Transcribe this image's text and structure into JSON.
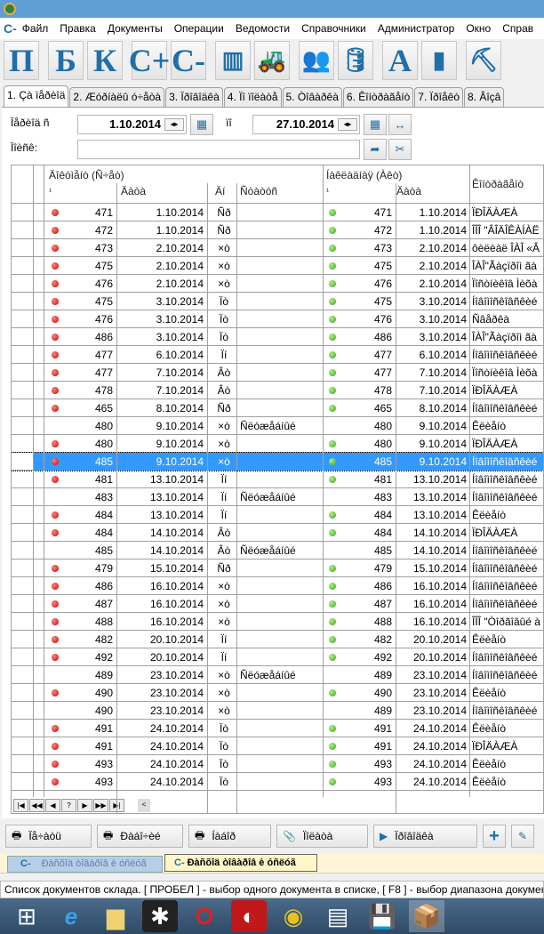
{
  "menu": {
    "logo": "C-",
    "items": [
      "Файл",
      "Правка",
      "Документы",
      "Операции",
      "Ведомости",
      "Справочники",
      "Администратор",
      "Окно",
      "Справ"
    ]
  },
  "toolbar": {
    "buttons": [
      {
        "label": "П"
      },
      {
        "label": "Б"
      },
      {
        "label": "К"
      },
      {
        "label": "C+"
      },
      {
        "label": "C-"
      },
      {
        "icon": "barcode-icon"
      },
      {
        "icon": "forklift-icon"
      },
      {
        "icon": "users-icon"
      },
      {
        "icon": "database-icon"
      },
      {
        "label": "A"
      },
      {
        "icon": "bar-chart-icon"
      },
      {
        "icon": "worker-icon"
      }
    ]
  },
  "tabs": [
    "1. Çà ïåðèîä",
    "2. Æóðíàëû ó÷åòà",
    "3. Ïðîâîäêà",
    "4. Ïî ïîëàòå",
    "5. Òîâàðêà",
    "6. Êîíòðàãåíò",
    "7. Ïðîåêò",
    "8. Âîçâ"
  ],
  "filter": {
    "period_label": "Ïåðèîä ñ",
    "date_from": "1.10.2014",
    "to_label": "ïî",
    "date_to": "27.10.2014",
    "search_label": "Ïîèñê:",
    "search_value": ""
  },
  "grid": {
    "group1": "Äîêóìåíò (Ñ÷åò)",
    "group2": "Íàêëàäíàÿ (Àêò)",
    "col_contractor": "Êîíòðàãåíò",
    "col_num": "¹",
    "col_date": "Äàòà",
    "col_day": "Äí",
    "col_status": "Ñòàòóñ",
    "col_num2": "¹",
    "col_date2": "Äàòà",
    "selected_index": 14,
    "rows": [
      {
        "r": true,
        "n": "471",
        "d": "1.10.2014",
        "w": "Ñð",
        "s": "",
        "g": true,
        "n2": "471",
        "d2": "1.10.2014",
        "c": "ÏÐÎÄÀÆÀ"
      },
      {
        "r": true,
        "n": "472",
        "d": "1.10.2014",
        "w": "Ñð",
        "s": "",
        "g": true,
        "n2": "472",
        "d2": "1.10.2014",
        "c": "ÎÎÎ \"ÂÎÄÎÊÀÍÀË"
      },
      {
        "r": true,
        "n": "473",
        "d": "2.10.2014",
        "w": "×ò",
        "s": "",
        "g": true,
        "n2": "473",
        "d2": "2.10.2014",
        "c": "ôèëèàë ÎÀÎ «Â"
      },
      {
        "r": true,
        "n": "475",
        "d": "2.10.2014",
        "w": "×ò",
        "s": "",
        "g": true,
        "n2": "475",
        "d2": "2.10.2014",
        "c": "ÎÀÎ\"Ãàçïðîì ãà"
      },
      {
        "r": true,
        "n": "476",
        "d": "2.10.2014",
        "w": "×ò",
        "s": "",
        "g": true,
        "n2": "476",
        "d2": "2.10.2014",
        "c": "Ïîñòíèêîâ Ìèõà"
      },
      {
        "r": true,
        "n": "475",
        "d": "3.10.2014",
        "w": "Ïò",
        "s": "",
        "g": true,
        "n2": "475",
        "d2": "3.10.2014",
        "c": "Íîâîìîñêîâñêèé"
      },
      {
        "r": true,
        "n": "476",
        "d": "3.10.2014",
        "w": "Ïò",
        "s": "",
        "g": true,
        "n2": "476",
        "d2": "3.10.2014",
        "c": "Ñâåðêà"
      },
      {
        "r": true,
        "n": "486",
        "d": "3.10.2014",
        "w": "Ïò",
        "s": "",
        "g": true,
        "n2": "486",
        "d2": "3.10.2014",
        "c": "ÎÀÎ\"Ãàçïðîì ãà"
      },
      {
        "r": true,
        "n": "477",
        "d": "6.10.2014",
        "w": "Ïí",
        "s": "",
        "g": true,
        "n2": "477",
        "d2": "6.10.2014",
        "c": "Íîâîìîñêîâñêèé"
      },
      {
        "r": true,
        "n": "477",
        "d": "7.10.2014",
        "w": "Âò",
        "s": "",
        "g": true,
        "n2": "477",
        "d2": "7.10.2014",
        "c": "Ïîñòíèêîâ Ìèõà"
      },
      {
        "r": true,
        "n": "478",
        "d": "7.10.2014",
        "w": "Âò",
        "s": "",
        "g": true,
        "n2": "478",
        "d2": "7.10.2014",
        "c": "ÏÐÎÄÀÆÀ"
      },
      {
        "r": true,
        "n": "465",
        "d": "8.10.2014",
        "w": "Ñð",
        "s": "",
        "g": true,
        "n2": "465",
        "d2": "8.10.2014",
        "c": "Íîâîìîñêîâñêèé"
      },
      {
        "r": false,
        "n": "480",
        "d": "9.10.2014",
        "w": "×ò",
        "s": "Ñëóæåáíûé",
        "g": false,
        "n2": "480",
        "d2": "9.10.2014",
        "c": "Êëèåíò"
      },
      {
        "r": true,
        "n": "480",
        "d": "9.10.2014",
        "w": "×ò",
        "s": "",
        "g": true,
        "n2": "480",
        "d2": "9.10.2014",
        "c": "ÏÐÎÄÀÆÀ"
      },
      {
        "r": true,
        "n": "485",
        "d": "9.10.2014",
        "w": "×ò",
        "s": "",
        "g": true,
        "n2": "485",
        "d2": "9.10.2014",
        "c": "Íîâîìîñêîâñêèé"
      },
      {
        "r": true,
        "n": "481",
        "d": "13.10.2014",
        "w": "Ïí",
        "s": "",
        "g": true,
        "n2": "481",
        "d2": "13.10.2014",
        "c": "Íîâîìîñêîâñêèé"
      },
      {
        "r": false,
        "n": "483",
        "d": "13.10.2014",
        "w": "Ïí",
        "s": "Ñëóæåáíûé",
        "g": false,
        "n2": "483",
        "d2": "13.10.2014",
        "c": "Íîâîìîñêîâñêèé"
      },
      {
        "r": true,
        "n": "484",
        "d": "13.10.2014",
        "w": "Ïí",
        "s": "",
        "g": true,
        "n2": "484",
        "d2": "13.10.2014",
        "c": "Êëèåíò"
      },
      {
        "r": true,
        "n": "484",
        "d": "14.10.2014",
        "w": "Âò",
        "s": "",
        "g": true,
        "n2": "484",
        "d2": "14.10.2014",
        "c": "ÏÐÎÄÀÆÀ"
      },
      {
        "r": false,
        "n": "485",
        "d": "14.10.2014",
        "w": "Âò",
        "s": "Ñëóæåáíûé",
        "g": false,
        "n2": "485",
        "d2": "14.10.2014",
        "c": "Íîâîìîñêîâñêèé"
      },
      {
        "r": true,
        "n": "479",
        "d": "15.10.2014",
        "w": "Ñð",
        "s": "",
        "g": true,
        "n2": "479",
        "d2": "15.10.2014",
        "c": "Íîâîìîñêîâñêèé"
      },
      {
        "r": true,
        "n": "486",
        "d": "16.10.2014",
        "w": "×ò",
        "s": "",
        "g": true,
        "n2": "486",
        "d2": "16.10.2014",
        "c": "Íîâîìîñêîâñêèé"
      },
      {
        "r": true,
        "n": "487",
        "d": "16.10.2014",
        "w": "×ò",
        "s": "",
        "g": true,
        "n2": "487",
        "d2": "16.10.2014",
        "c": "Íîâîìîñêîâñêèé"
      },
      {
        "r": true,
        "n": "488",
        "d": "16.10.2014",
        "w": "×ò",
        "s": "",
        "g": true,
        "n2": "488",
        "d2": "16.10.2014",
        "c": "ÎÎÎ \"Òîðãîâûé à"
      },
      {
        "r": true,
        "n": "482",
        "d": "20.10.2014",
        "w": "Ïí",
        "s": "",
        "g": true,
        "n2": "482",
        "d2": "20.10.2014",
        "c": "Êëèåíò"
      },
      {
        "r": true,
        "n": "492",
        "d": "20.10.2014",
        "w": "Ïí",
        "s": "",
        "g": true,
        "n2": "492",
        "d2": "20.10.2014",
        "c": "Íîâîìîñêîâñêèé"
      },
      {
        "r": false,
        "n": "489",
        "d": "23.10.2014",
        "w": "×ò",
        "s": "Ñëóæåáíûé",
        "g": false,
        "n2": "489",
        "d2": "23.10.2014",
        "c": "Íîâîìîñêîâñêèé"
      },
      {
        "r": true,
        "n": "490",
        "d": "23.10.2014",
        "w": "×ò",
        "s": "",
        "g": true,
        "n2": "490",
        "d2": "23.10.2014",
        "c": "Êëèåíò"
      },
      {
        "r": false,
        "n": "490",
        "d": "23.10.2014",
        "w": "×ò",
        "s": "",
        "g": false,
        "n2": "489",
        "d2": "23.10.2014",
        "c": "Íîâîìîñêîâñêèé"
      },
      {
        "r": true,
        "n": "491",
        "d": "24.10.2014",
        "w": "Ïò",
        "s": "",
        "g": true,
        "n2": "491",
        "d2": "24.10.2014",
        "c": "Êëèåíò"
      },
      {
        "r": true,
        "n": "491",
        "d": "24.10.2014",
        "w": "Ïò",
        "s": "",
        "g": true,
        "n2": "491",
        "d2": "24.10.2014",
        "c": "ÏÐÎÄÀÆÀ"
      },
      {
        "r": true,
        "n": "493",
        "d": "24.10.2014",
        "w": "Ïò",
        "s": "",
        "g": true,
        "n2": "493",
        "d2": "24.10.2014",
        "c": "Êëèåíò"
      },
      {
        "r": true,
        "n": "493",
        "d": "24.10.2014",
        "w": "Ïò",
        "s": "",
        "g": true,
        "n2": "493",
        "d2": "24.10.2014",
        "c": "Êëèåíò"
      }
    ]
  },
  "navigator": [
    "|◀",
    "◀◀",
    "◀",
    "?",
    "▶",
    "▶▶",
    "▶|",
    "<"
  ],
  "buttons": {
    "print": "Ïå÷àòü",
    "invoice": "Ðàáî÷èé",
    "order": "Íàáîð",
    "attach": "Ïîëàòà",
    "post": "Ïðîâîäêà"
  },
  "doc_tabs": [
    "Ðàñõîä òîâàðîâ è óñëóã",
    "Ðàñõîä òîâàðîâ è óñëóã"
  ],
  "status": "Список документов склада. [ ПРОБЕЛ ] - выбор одного документа в списке, [ F8 ] - выбор диапазона докумен",
  "colors": {
    "titlebar": "#5f9fd6",
    "selection": "#3399ff",
    "accent": "#1f6fa8"
  }
}
